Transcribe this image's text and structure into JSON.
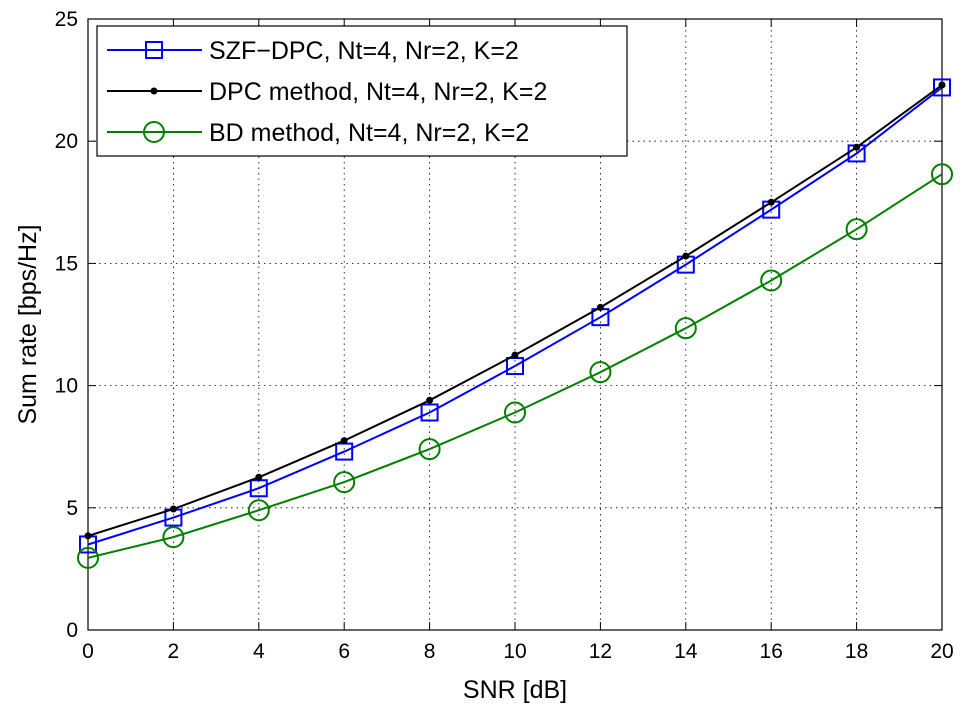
{
  "chart_data": {
    "type": "line",
    "title": "",
    "xlabel": "SNR [dB]",
    "ylabel": "Sum rate [bps/Hz]",
    "xlim": [
      0,
      20
    ],
    "ylim": [
      0,
      25
    ],
    "grid": true,
    "legend_position": "top-left",
    "x_ticks": [
      0,
      2,
      4,
      6,
      8,
      10,
      12,
      14,
      16,
      18,
      20
    ],
    "y_ticks": [
      0,
      5,
      10,
      15,
      20,
      25
    ],
    "x": [
      0,
      2,
      4,
      6,
      8,
      10,
      12,
      14,
      16,
      18,
      20
    ],
    "series": [
      {
        "name": "SZF−DPC, Nt=4, Nr=2, K=2",
        "color": "#0000ff",
        "marker": "square",
        "values": [
          3.5,
          4.6,
          5.8,
          7.3,
          8.9,
          10.8,
          12.8,
          14.95,
          17.2,
          19.5,
          22.2
        ]
      },
      {
        "name": "DPC method, Nt=4, Nr=2, K=2",
        "color": "#000000",
        "marker": "dot",
        "values": [
          3.85,
          4.95,
          6.25,
          7.75,
          9.4,
          11.25,
          13.2,
          15.3,
          17.5,
          19.75,
          22.3
        ]
      },
      {
        "name": "BD method, Nt=4, Nr=2, K=2",
        "color": "#008000",
        "marker": "circle",
        "values": [
          2.95,
          3.8,
          4.9,
          6.05,
          7.4,
          8.9,
          10.55,
          12.35,
          14.3,
          16.4,
          18.65
        ]
      }
    ]
  }
}
